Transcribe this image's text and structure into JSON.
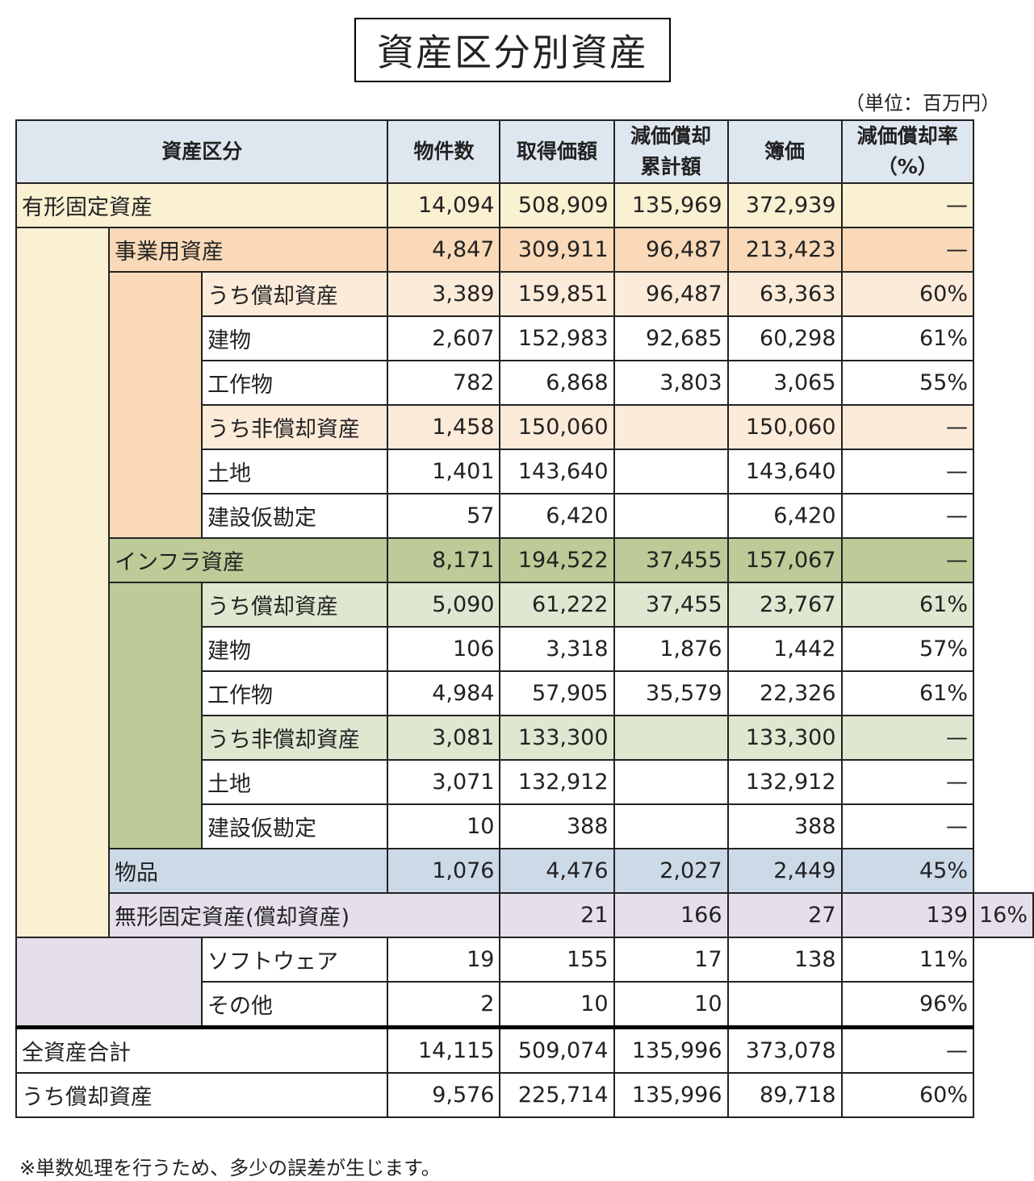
{
  "title": "資産区分別資産",
  "unit": "（単位：百万円）",
  "headers": {
    "category": "資産区分",
    "count": "物件数",
    "acquisition": "取得価額",
    "depreciation_line1": "減価償却",
    "depreciation_line2": "累計額",
    "book_value": "簿価",
    "rate_line1": "減価償却率",
    "rate_line2": "（%）"
  },
  "rows": {
    "tangible": {
      "label": "有形固定資産",
      "count": "14,094",
      "acq": "508,909",
      "dep": "135,969",
      "book": "372,939",
      "rate": "—"
    },
    "business": {
      "label": "事業用資産",
      "count": "4,847",
      "acq": "309,911",
      "dep": "96,487",
      "book": "213,423",
      "rate": "—"
    },
    "biz_dep": {
      "label": "うち償却資産",
      "count": "3,389",
      "acq": "159,851",
      "dep": "96,487",
      "book": "63,363",
      "rate": "60%"
    },
    "biz_building": {
      "label": "建物",
      "count": "2,607",
      "acq": "152,983",
      "dep": "92,685",
      "book": "60,298",
      "rate": "61%"
    },
    "biz_structure": {
      "label": "工作物",
      "count": "782",
      "acq": "6,868",
      "dep": "3,803",
      "book": "3,065",
      "rate": "55%"
    },
    "biz_nondep": {
      "label": "うち非償却資産",
      "count": "1,458",
      "acq": "150,060",
      "dep": "",
      "book": "150,060",
      "rate": "—"
    },
    "biz_land": {
      "label": "土地",
      "count": "1,401",
      "acq": "143,640",
      "dep": "",
      "book": "143,640",
      "rate": "—"
    },
    "biz_cip": {
      "label": "建設仮勘定",
      "count": "57",
      "acq": "6,420",
      "dep": "",
      "book": "6,420",
      "rate": "—"
    },
    "infra": {
      "label": "インフラ資産",
      "count": "8,171",
      "acq": "194,522",
      "dep": "37,455",
      "book": "157,067",
      "rate": "—"
    },
    "inf_dep": {
      "label": "うち償却資産",
      "count": "5,090",
      "acq": "61,222",
      "dep": "37,455",
      "book": "23,767",
      "rate": "61%"
    },
    "inf_building": {
      "label": "建物",
      "count": "106",
      "acq": "3,318",
      "dep": "1,876",
      "book": "1,442",
      "rate": "57%"
    },
    "inf_structure": {
      "label": "工作物",
      "count": "4,984",
      "acq": "57,905",
      "dep": "35,579",
      "book": "22,326",
      "rate": "61%"
    },
    "inf_nondep": {
      "label": "うち非償却資産",
      "count": "3,081",
      "acq": "133,300",
      "dep": "",
      "book": "133,300",
      "rate": "—"
    },
    "inf_land": {
      "label": "土地",
      "count": "3,071",
      "acq": "132,912",
      "dep": "",
      "book": "132,912",
      "rate": "—"
    },
    "inf_cip": {
      "label": "建設仮勘定",
      "count": "10",
      "acq": "388",
      "dep": "",
      "book": "388",
      "rate": "—"
    },
    "goods": {
      "label": "物品",
      "count": "1,076",
      "acq": "4,476",
      "dep": "2,027",
      "book": "2,449",
      "rate": "45%"
    },
    "intangible": {
      "label": "無形固定資産(償却資産)",
      "count": "21",
      "acq": "166",
      "dep": "27",
      "book": "139",
      "rate": "16%"
    },
    "software": {
      "label": "ソフトウェア",
      "count": "19",
      "acq": "155",
      "dep": "17",
      "book": "138",
      "rate": "11%"
    },
    "other": {
      "label": "その他",
      "count": "2",
      "acq": "10",
      "dep": "10",
      "book": "",
      "rate": "96%"
    },
    "total": {
      "label": "全資産合計",
      "count": "14,115",
      "acq": "509,074",
      "dep": "135,996",
      "book": "373,078",
      "rate": "—"
    },
    "total_dep": {
      "label": "うち償却資産",
      "count": "9,576",
      "acq": "225,714",
      "dep": "135,996",
      "book": "89,718",
      "rate": "60%"
    }
  },
  "note": "※単数処理を行うため、多少の誤差が生じます。"
}
